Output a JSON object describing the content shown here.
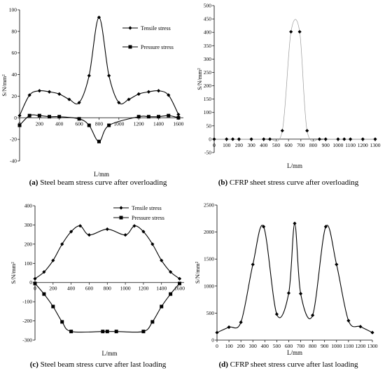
{
  "chart_data": [
    {
      "id": "a",
      "type": "line",
      "caption_letter": "(a)",
      "caption_text": " Steel beam stress curve after overloading",
      "xlabel": "L/mm",
      "ylabel": "S/N/mm²",
      "xlim": [
        0,
        1650
      ],
      "ylim": [
        -40,
        100
      ],
      "x_ticks": [
        0,
        200,
        400,
        600,
        800,
        1000,
        1200,
        1400,
        1600
      ],
      "y_ticks": [
        -40,
        -20,
        0,
        20,
        40,
        60,
        80,
        100
      ],
      "legend": "top-right",
      "series": [
        {
          "name": "Tensile stress",
          "marker": "diamond",
          "x": [
            0,
            100,
            200,
            300,
            400,
            500,
            600,
            700,
            800,
            900,
            1000,
            1100,
            1200,
            1300,
            1400,
            1500,
            1600
          ],
          "y": [
            2,
            21,
            25,
            24,
            22,
            17,
            14,
            39,
            93,
            39,
            14,
            17,
            22,
            24,
            25,
            21,
            3
          ]
        },
        {
          "name": "Pressure stress",
          "marker": "square",
          "x": [
            0,
            100,
            200,
            300,
            400,
            600,
            700,
            800,
            900,
            1200,
            1300,
            1400,
            1500,
            1600
          ],
          "y": [
            -7,
            2,
            2,
            1,
            1,
            -1,
            -7,
            -22,
            -7,
            1,
            1,
            1,
            2,
            0
          ]
        }
      ]
    },
    {
      "id": "b",
      "type": "line",
      "caption_letter": "(b)",
      "caption_text": " CFRP sheet stress curve after overloading",
      "xlabel": "L/mm",
      "ylabel": "S/N/mm²",
      "xlim": [
        0,
        1300
      ],
      "ylim": [
        -50,
        500
      ],
      "x_ticks": [
        0,
        100,
        200,
        300,
        400,
        500,
        600,
        700,
        800,
        900,
        1000,
        1100,
        1200,
        1300
      ],
      "x_tick_labels": [
        "0",
        "100",
        "200",
        "300",
        "400",
        "500",
        "600",
        "700",
        "800",
        "900",
        "1000",
        "1100",
        "1200",
        "1300"
      ],
      "y_ticks": [
        -50,
        0,
        50,
        100,
        150,
        200,
        250,
        300,
        350,
        400,
        450,
        500
      ],
      "series": [
        {
          "marker": "diamond",
          "x": [
            0,
            100,
            150,
            200,
            300,
            400,
            450,
            550,
            620,
            690,
            750,
            850,
            900,
            1000,
            1050,
            1100,
            1200,
            1300
          ],
          "y": [
            0,
            0,
            0,
            0,
            0,
            0,
            0,
            32,
            402,
            402,
            32,
            0,
            0,
            0,
            0,
            0,
            0,
            0
          ]
        }
      ]
    },
    {
      "id": "c",
      "type": "line",
      "caption_letter": "(c)",
      "caption_text": " Steel beam stress curve after last loading",
      "xlabel": "L/mm",
      "ylabel": "S/N/mm²",
      "xlim": [
        0,
        1650
      ],
      "ylim": [
        -300,
        400
      ],
      "x_ticks": [
        0,
        200,
        400,
        600,
        800,
        1000,
        1200,
        1400,
        1600
      ],
      "y_ticks": [
        -300,
        -200,
        -100,
        0,
        100,
        200,
        300,
        400
      ],
      "legend": "top-right",
      "series": [
        {
          "name": "Tensile stress",
          "marker": "diamond",
          "x": [
            0,
            100,
            200,
            300,
            400,
            500,
            600,
            800,
            1000,
            1100,
            1200,
            1300,
            1400,
            1500,
            1600
          ],
          "y": [
            20,
            55,
            115,
            200,
            265,
            295,
            248,
            278,
            248,
            295,
            265,
            200,
            115,
            55,
            20
          ]
        },
        {
          "name": "Pressure stress",
          "marker": "square",
          "x": [
            0,
            100,
            200,
            300,
            400,
            750,
            800,
            900,
            1200,
            1300,
            1400,
            1500,
            1600
          ],
          "y": [
            -5,
            -60,
            -125,
            -205,
            -255,
            -255,
            -255,
            -255,
            -255,
            -205,
            -125,
            -60,
            -5
          ]
        }
      ]
    },
    {
      "id": "d",
      "type": "line",
      "caption_letter": "(d)",
      "caption_text": " CFRP sheet stress curve after last loading",
      "xlabel": "L/mm",
      "ylabel": "S/N/mm²",
      "xlim": [
        0,
        1300
      ],
      "ylim": [
        0,
        2500
      ],
      "x_ticks": [
        0,
        100,
        200,
        300,
        400,
        500,
        600,
        700,
        800,
        900,
        1000,
        1100,
        1200,
        1300
      ],
      "x_tick_labels": [
        "0",
        "100",
        "200",
        "300",
        "400",
        "500",
        "600",
        "700",
        "800",
        "900",
        "1000",
        "1100",
        "1200",
        "1300"
      ],
      "y_ticks": [
        0,
        500,
        1000,
        1500,
        2000,
        2500
      ],
      "series": [
        {
          "marker": "diamond",
          "x": [
            0,
            100,
            200,
            300,
            390,
            500,
            600,
            650,
            700,
            800,
            910,
            1000,
            1100,
            1200,
            1300
          ],
          "y": [
            140,
            240,
            330,
            1400,
            2100,
            480,
            870,
            2160,
            860,
            460,
            2100,
            1400,
            360,
            250,
            140
          ]
        }
      ]
    }
  ]
}
